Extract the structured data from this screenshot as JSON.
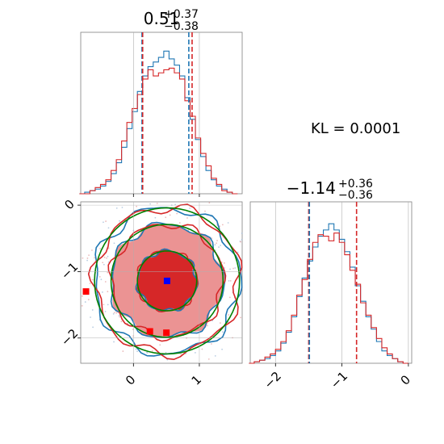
{
  "kl_text": "KL = 0.0001",
  "colors": {
    "blue": "#1f77b4",
    "red": "#d62728",
    "green": "#008000",
    "marker_blue": "#0000ff",
    "marker_red": "#ff0000",
    "grid": "#b0b0b0",
    "fill_dark": "#d62728",
    "fill_light": "#eb9393"
  },
  "chart_data": [
    {
      "type": "histogram",
      "panel": "top-left",
      "title_value": "0.51",
      "title_plus": "+0.37",
      "title_minus": "−0.38",
      "xlim": [
        -0.8,
        1.65
      ],
      "bins_x": [
        -0.78,
        -0.7,
        -0.62,
        -0.54,
        -0.46,
        -0.38,
        -0.3,
        -0.22,
        -0.14,
        -0.06,
        0.02,
        0.1,
        0.18,
        0.26,
        0.34,
        0.42,
        0.5,
        0.58,
        0.66,
        0.74,
        0.82,
        0.9,
        0.98,
        1.06,
        1.14,
        1.22,
        1.3,
        1.38,
        1.46,
        1.54
      ],
      "series": [
        {
          "name": "blue",
          "color": "blue",
          "values": [
            0.0,
            0.01,
            0.02,
            0.03,
            0.05,
            0.08,
            0.13,
            0.2,
            0.3,
            0.42,
            0.53,
            0.66,
            0.76,
            0.82,
            0.85,
            0.88,
            0.92,
            0.87,
            0.83,
            0.76,
            0.62,
            0.48,
            0.35,
            0.24,
            0.15,
            0.09,
            0.05,
            0.03,
            0.01,
            0.0
          ]
        },
        {
          "name": "red",
          "color": "red",
          "values": [
            0.0,
            0.0,
            0.02,
            0.04,
            0.06,
            0.09,
            0.15,
            0.22,
            0.34,
            0.46,
            0.55,
            0.64,
            0.74,
            0.8,
            0.76,
            0.78,
            0.8,
            0.81,
            0.78,
            0.74,
            0.6,
            0.5,
            0.36,
            0.26,
            0.18,
            0.1,
            0.06,
            0.02,
            0.01,
            0.0
          ]
        }
      ],
      "vlines": [
        {
          "x": 0.13,
          "color": "blue"
        },
        {
          "x": 0.14,
          "color": "red"
        },
        {
          "x": 0.84,
          "color": "blue"
        },
        {
          "x": 0.89,
          "color": "red"
        }
      ],
      "grid": true
    },
    {
      "type": "contour",
      "panel": "bottom-left",
      "xlim": [
        -0.8,
        1.65
      ],
      "ylim": [
        -2.38,
        0.05
      ],
      "x_ticks": [
        {
          "v": 0,
          "label": "0"
        },
        {
          "v": 1,
          "label": "1"
        }
      ],
      "y_ticks": [
        {
          "v": 0,
          "label": "0"
        },
        {
          "v": -1,
          "label": "−1"
        },
        {
          "v": -2,
          "label": "−2"
        }
      ],
      "center": [
        0.51,
        -1.14
      ],
      "filled_levels": [
        {
          "r": 0.45,
          "color": "fill_dark"
        },
        {
          "r": 0.85,
          "color": "fill_light"
        }
      ],
      "contours": [
        {
          "color": "blue",
          "r": [
            0.45,
            0.85,
            1.1
          ]
        },
        {
          "color": "red",
          "r": [
            0.45,
            0.85,
            1.1
          ]
        },
        {
          "color": "green",
          "r": [
            0.45,
            0.85,
            1.1
          ]
        }
      ],
      "markers": [
        {
          "x": 0.51,
          "y": -1.14,
          "color": "marker_blue"
        },
        {
          "x": -0.72,
          "y": -1.3,
          "color": "marker_red"
        },
        {
          "x": 0.25,
          "y": -1.9,
          "color": "marker_red"
        },
        {
          "x": 0.5,
          "y": -1.92,
          "color": "marker_red"
        }
      ],
      "grid": true
    },
    {
      "type": "histogram",
      "panel": "bottom-right",
      "title_value": "−1.14",
      "title_plus": "+0.36",
      "title_minus": "−0.36",
      "xlim": [
        -2.38,
        0.05
      ],
      "x_ticks": [
        {
          "v": -2,
          "label": "−2"
        },
        {
          "v": -1,
          "label": "−1"
        },
        {
          "v": 0,
          "label": "0"
        }
      ],
      "bins_x": [
        -2.36,
        -2.28,
        -2.2,
        -2.12,
        -2.04,
        -1.96,
        -1.88,
        -1.8,
        -1.72,
        -1.64,
        -1.56,
        -1.48,
        -1.4,
        -1.32,
        -1.24,
        -1.16,
        -1.08,
        -1.0,
        -0.92,
        -0.84,
        -0.76,
        -0.68,
        -0.6,
        -0.52,
        -0.44,
        -0.36,
        -0.28,
        -0.2,
        -0.12,
        -0.04
      ],
      "series": [
        {
          "name": "blue",
          "color": "blue",
          "values": [
            0.0,
            0.01,
            0.02,
            0.03,
            0.05,
            0.08,
            0.13,
            0.2,
            0.3,
            0.43,
            0.55,
            0.66,
            0.75,
            0.82,
            0.86,
            0.9,
            0.86,
            0.8,
            0.72,
            0.62,
            0.5,
            0.4,
            0.3,
            0.22,
            0.14,
            0.08,
            0.05,
            0.03,
            0.01,
            0.0
          ]
        },
        {
          "name": "red",
          "color": "red",
          "values": [
            0.0,
            0.01,
            0.02,
            0.04,
            0.06,
            0.09,
            0.14,
            0.21,
            0.31,
            0.44,
            0.54,
            0.67,
            0.78,
            0.83,
            0.82,
            0.79,
            0.84,
            0.78,
            0.7,
            0.6,
            0.51,
            0.39,
            0.31,
            0.23,
            0.16,
            0.1,
            0.06,
            0.03,
            0.01,
            0.0
          ]
        }
      ],
      "vlines": [
        {
          "x": -1.5,
          "color": "red"
        },
        {
          "x": -1.49,
          "color": "blue"
        },
        {
          "x": -0.78,
          "color": "red"
        }
      ],
      "grid": true
    }
  ]
}
